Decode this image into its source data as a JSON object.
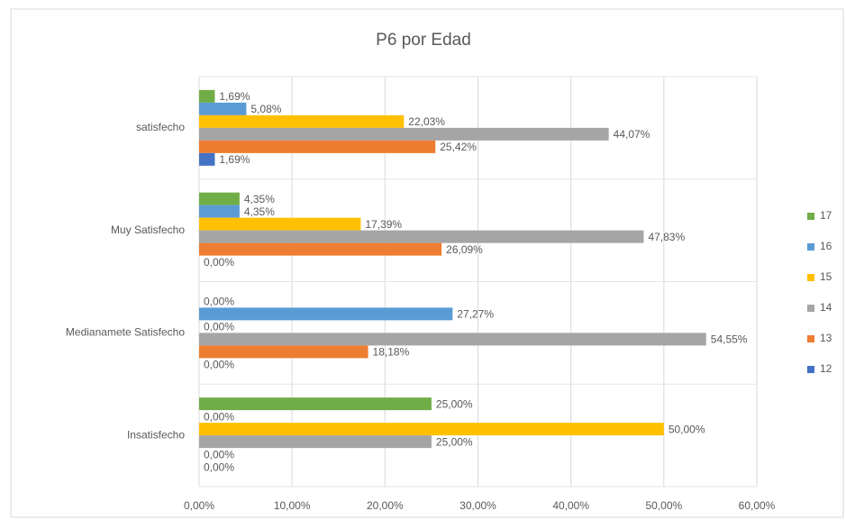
{
  "chart_data": {
    "type": "bar",
    "orientation": "horizontal",
    "title": "P6 por Edad",
    "categories": [
      "satisfecho",
      "Muy Satisfecho",
      "Medianamete Satisfecho",
      "Insatisfecho"
    ],
    "series": [
      {
        "name": "17",
        "color": "#70ad47",
        "values": [
          1.69,
          4.35,
          0,
          25
        ],
        "value_labels": [
          "1,69%",
          "4,35%",
          "0,00%",
          "25,00%"
        ]
      },
      {
        "name": "16",
        "color": "#5b9bd5",
        "values": [
          5.08,
          4.35,
          27.27,
          0
        ],
        "value_labels": [
          "5,08%",
          "4,35%",
          "27,27%",
          "0,00%"
        ]
      },
      {
        "name": "15",
        "color": "#ffc000",
        "values": [
          22.03,
          17.39,
          0,
          50
        ],
        "value_labels": [
          "22,03%",
          "17,39%",
          "0,00%",
          "50,00%"
        ]
      },
      {
        "name": "14",
        "color": "#a5a5a5",
        "values": [
          44.07,
          47.83,
          54.55,
          25
        ],
        "value_labels": [
          "44,07%",
          "47,83%",
          "54,55%",
          "25,00%"
        ]
      },
      {
        "name": "13",
        "color": "#ed7d31",
        "values": [
          25.42,
          26.09,
          18.18,
          0
        ],
        "value_labels": [
          "25,42%",
          "26,09%",
          "18,18%",
          "0,00%"
        ]
      },
      {
        "name": "12",
        "color": "#4472c4",
        "values": [
          1.69,
          0,
          0,
          0
        ],
        "value_labels": [
          "1,69%",
          "0,00%",
          "0,00%",
          "0,00%"
        ]
      }
    ],
    "xlim": [
      0,
      60
    ],
    "xticks": [
      {
        "value": 0,
        "label": "0,00%"
      },
      {
        "value": 10,
        "label": "10,00%"
      },
      {
        "value": 20,
        "label": "20,00%"
      },
      {
        "value": 30,
        "label": "30,00%"
      },
      {
        "value": 40,
        "label": "40,00%"
      },
      {
        "value": 50,
        "label": "50,00%"
      },
      {
        "value": 60,
        "label": "60,00%"
      }
    ],
    "grid": true,
    "legend": "right"
  }
}
